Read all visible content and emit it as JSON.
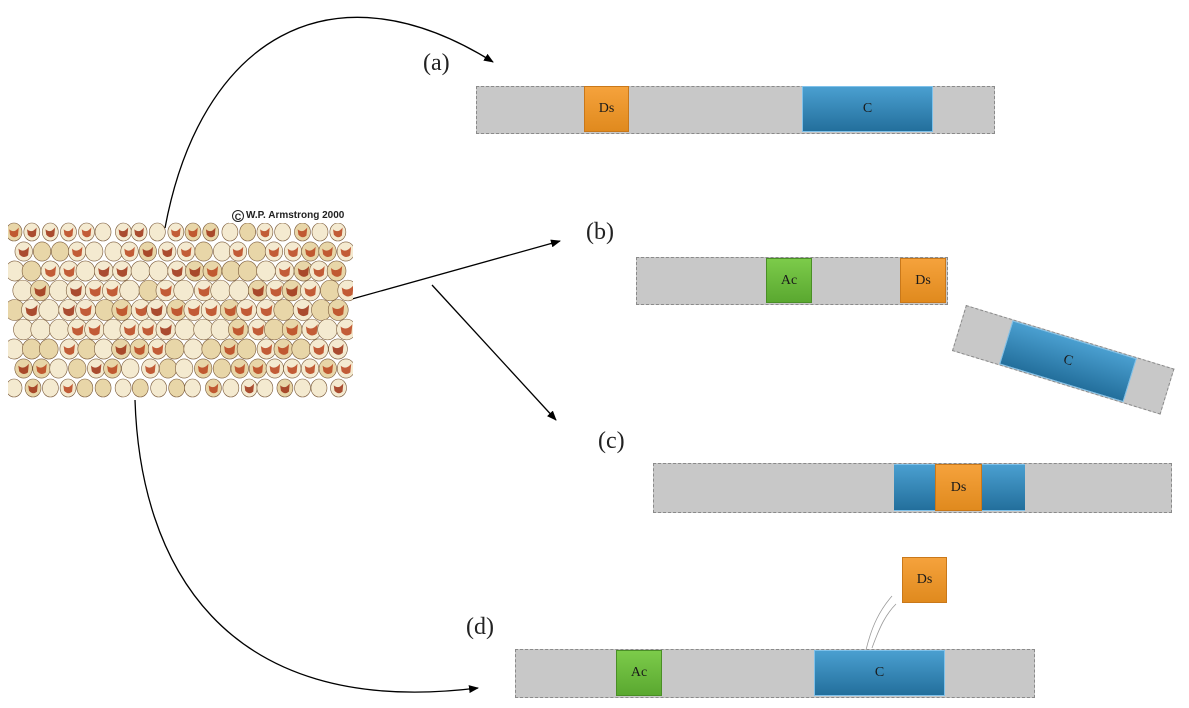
{
  "photo": {
    "credit": "W.P. Armstrong 2000",
    "copyright_symbol": "C",
    "kernel_colors": [
      "#f4ead0",
      "#b8431c",
      "#e8d6a8",
      "#9c3014"
    ]
  },
  "panels": {
    "a": {
      "label": "(a)",
      "genes": {
        "ds": "Ds",
        "c": "C"
      }
    },
    "b": {
      "label": "(b)",
      "genes": {
        "ac": "Ac",
        "ds": "Ds",
        "c": "C"
      }
    },
    "c": {
      "label": "(c)",
      "genes": {
        "ds": "Ds"
      }
    },
    "d": {
      "label": "(d)",
      "genes": {
        "ds": "Ds",
        "ac": "Ac",
        "c": "C"
      }
    }
  },
  "colors": {
    "strand": "#c8c8c8",
    "ds": "#f0962a",
    "ac": "#6abb3c",
    "c": "#2f86b8",
    "arrow": "#000000"
  }
}
